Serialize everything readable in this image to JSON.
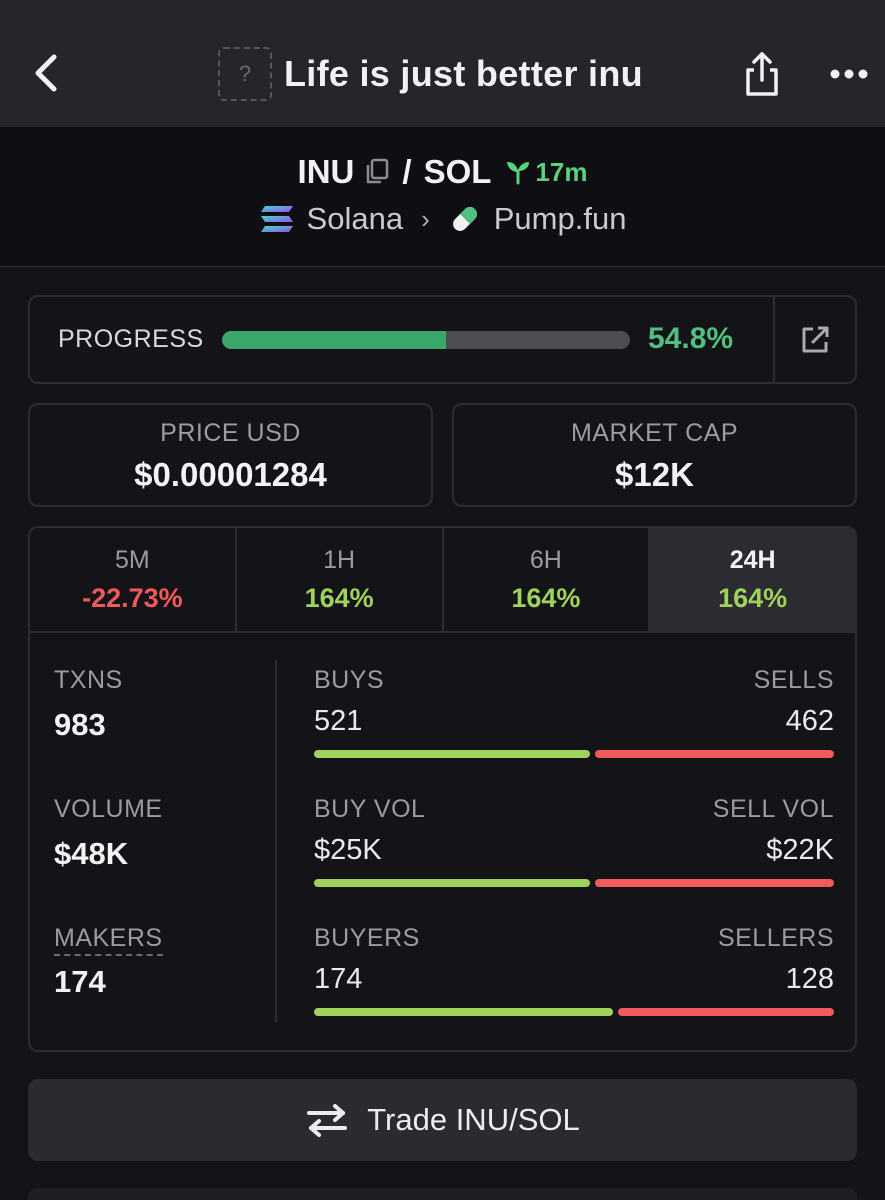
{
  "header": {
    "title": "Life is just better inu",
    "token_logo_placeholder": "?",
    "icons": [
      "chevron-left-icon",
      "share-icon",
      "more-horizontal-icon"
    ]
  },
  "pair": {
    "base": "INU",
    "separator": "/",
    "quote": "SOL",
    "age": "17m",
    "chain": "Solana",
    "dex": "Pump.fun"
  },
  "progress": {
    "label": "PROGRESS",
    "value_text": "54.8%",
    "fraction": 0.548
  },
  "price_usd": {
    "label": "PRICE USD",
    "value": "$0.00001284"
  },
  "market_cap": {
    "label": "MARKET CAP",
    "value": "$12K"
  },
  "tabs": [
    {
      "label": "5M",
      "value": "-22.73%",
      "direction": "neg",
      "active": false
    },
    {
      "label": "1H",
      "value": "164%",
      "direction": "pos",
      "active": false
    },
    {
      "label": "6H",
      "value": "164%",
      "direction": "pos",
      "active": false
    },
    {
      "label": "24H",
      "value": "164%",
      "direction": "pos",
      "active": true
    }
  ],
  "metrics": {
    "txns": {
      "label": "TXNS",
      "value": "983"
    },
    "volume": {
      "label": "VOLUME",
      "value": "$48K"
    },
    "makers": {
      "label": "MAKERS",
      "value": "174"
    }
  },
  "splits": {
    "txns": {
      "left_label": "BUYS",
      "right_label": "SELLS",
      "left_value": "521",
      "right_value": "462",
      "left_share": 0.53
    },
    "volume": {
      "left_label": "BUY VOL",
      "right_label": "SELL VOL",
      "left_value": "$25K",
      "right_value": "$22K",
      "left_share": 0.53
    },
    "makers": {
      "left_label": "BUYERS",
      "right_label": "SELLERS",
      "left_value": "174",
      "right_value": "128",
      "left_share": 0.575
    }
  },
  "colors": {
    "positive": "#9ed25a",
    "negative": "#f05a5a",
    "progress": "#3aa86a",
    "age": "#5ad27a"
  },
  "trade_button": {
    "label": "Trade INU/SOL"
  }
}
